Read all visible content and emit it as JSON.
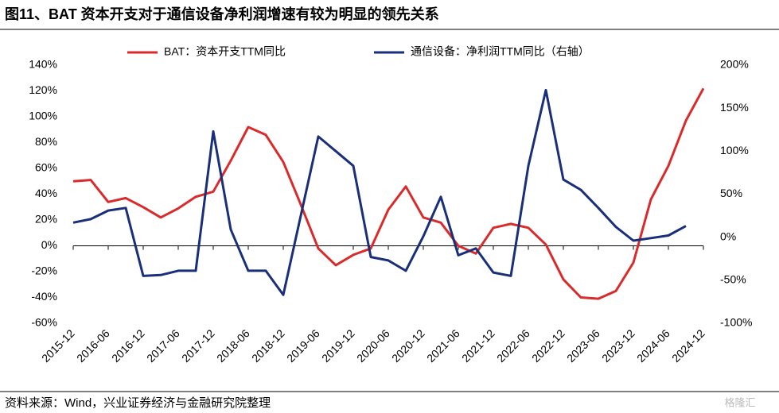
{
  "chart_data": {
    "type": "line",
    "title": "图11、BAT 资本开支对于通信设备净利润增速有较为明显的领先关系",
    "source": "资料来源：Wind，兴业证券经济与金融研究院整理",
    "watermark": "格隆汇",
    "categories": [
      "2015-12",
      null,
      "2016-06",
      null,
      "2016-12",
      null,
      "2017-06",
      null,
      "2017-12",
      null,
      "2018-06",
      null,
      "2018-12",
      null,
      "2019-06",
      null,
      "2019-12",
      null,
      "2020-06",
      null,
      "2020-12",
      null,
      "2021-06",
      null,
      "2021-12",
      null,
      "2022-06",
      null,
      "2022-12",
      null,
      "2023-06",
      null,
      "2023-12",
      null,
      "2024-06",
      null,
      "2024-12"
    ],
    "series": [
      {
        "name": "BAT：资本开支TTM同比",
        "color": "#d92b2b",
        "axis": "y",
        "values": [
          50,
          51,
          34,
          37,
          30,
          22,
          29,
          38,
          42,
          66,
          92,
          86,
          65,
          32,
          -2,
          -15,
          -7,
          -2,
          28,
          46,
          22,
          18,
          0,
          -6,
          14,
          17,
          14,
          1,
          -26,
          -40,
          -41,
          -35,
          -13,
          36,
          62,
          97,
          122
        ]
      },
      {
        "name": "通信设备：净利润TTM同比（右轴）",
        "color": "#1a2f7a",
        "axis": "y2",
        "values": [
          17,
          21,
          31,
          34,
          -45,
          -44,
          -39,
          -39,
          123,
          9,
          -39,
          -39,
          -67,
          25,
          117,
          100,
          83,
          -23,
          -27,
          -39,
          1,
          47,
          -21,
          -13,
          -41,
          -45,
          83,
          171,
          67,
          55,
          34,
          12,
          -4,
          -1,
          2,
          13,
          null
        ]
      }
    ],
    "ylim": [
      -60,
      140
    ],
    "yticks": [
      {
        "value": -60,
        "label": "-60%"
      },
      {
        "value": -40,
        "label": "-40%"
      },
      {
        "value": -20,
        "label": "-20%"
      },
      {
        "value": 0,
        "label": "0%"
      },
      {
        "value": 20,
        "label": "20%"
      },
      {
        "value": 40,
        "label": "40%"
      },
      {
        "value": 60,
        "label": "60%"
      },
      {
        "value": 80,
        "label": "80%"
      },
      {
        "value": 100,
        "label": "100%"
      },
      {
        "value": 120,
        "label": "120%"
      },
      {
        "value": 140,
        "label": "140%"
      }
    ],
    "y2lim": [
      -100,
      200
    ],
    "y2ticks": [
      {
        "value": -100,
        "label": "-100%"
      },
      {
        "value": -50,
        "label": "-50%"
      },
      {
        "value": 0,
        "label": "0%"
      },
      {
        "value": 50,
        "label": "50%"
      },
      {
        "value": 100,
        "label": "100%"
      },
      {
        "value": 150,
        "label": "150%"
      },
      {
        "value": 200,
        "label": "200%"
      }
    ],
    "legend": "top"
  }
}
